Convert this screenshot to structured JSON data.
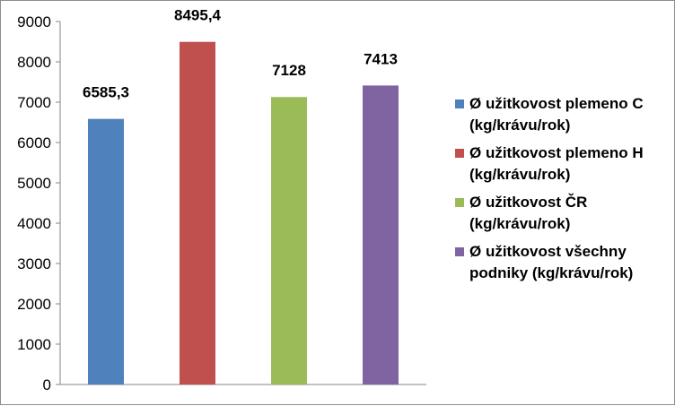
{
  "chart_data": {
    "type": "bar",
    "categories": [
      "Ø užitkovost plemeno C (kg/krávu/rok)",
      "Ø užitkovost plemeno H (kg/krávu/rok)",
      "Ø užitkovost ČR (kg/krávu/rok)",
      "Ø užitkovost všechny podniky (kg/krávu/rok)"
    ],
    "values": [
      6585.3,
      8495.4,
      7128,
      7413
    ],
    "value_labels": [
      "6585,3",
      "8495,4",
      "7128",
      "7413"
    ],
    "colors": [
      "#4f81bd",
      "#c0504d",
      "#9bbb59",
      "#8064a2"
    ],
    "ylim": [
      0,
      9000
    ],
    "yticks": [
      0,
      1000,
      2000,
      3000,
      4000,
      5000,
      6000,
      7000,
      8000,
      9000
    ],
    "grid": false,
    "legend_position": "right",
    "legend": [
      {
        "line1": "Ø užitkovost plemeno C",
        "line2": "(kg/krávu/rok)"
      },
      {
        "line1": "Ø užitkovost plemeno H",
        "line2": "(kg/krávu/rok)"
      },
      {
        "line1": "Ø užitkovost ČR",
        "line2": "(kg/krávu/rok)"
      },
      {
        "line1": "Ø užitkovost všechny",
        "line2": "podniky (kg/krávu/rok)"
      }
    ]
  }
}
